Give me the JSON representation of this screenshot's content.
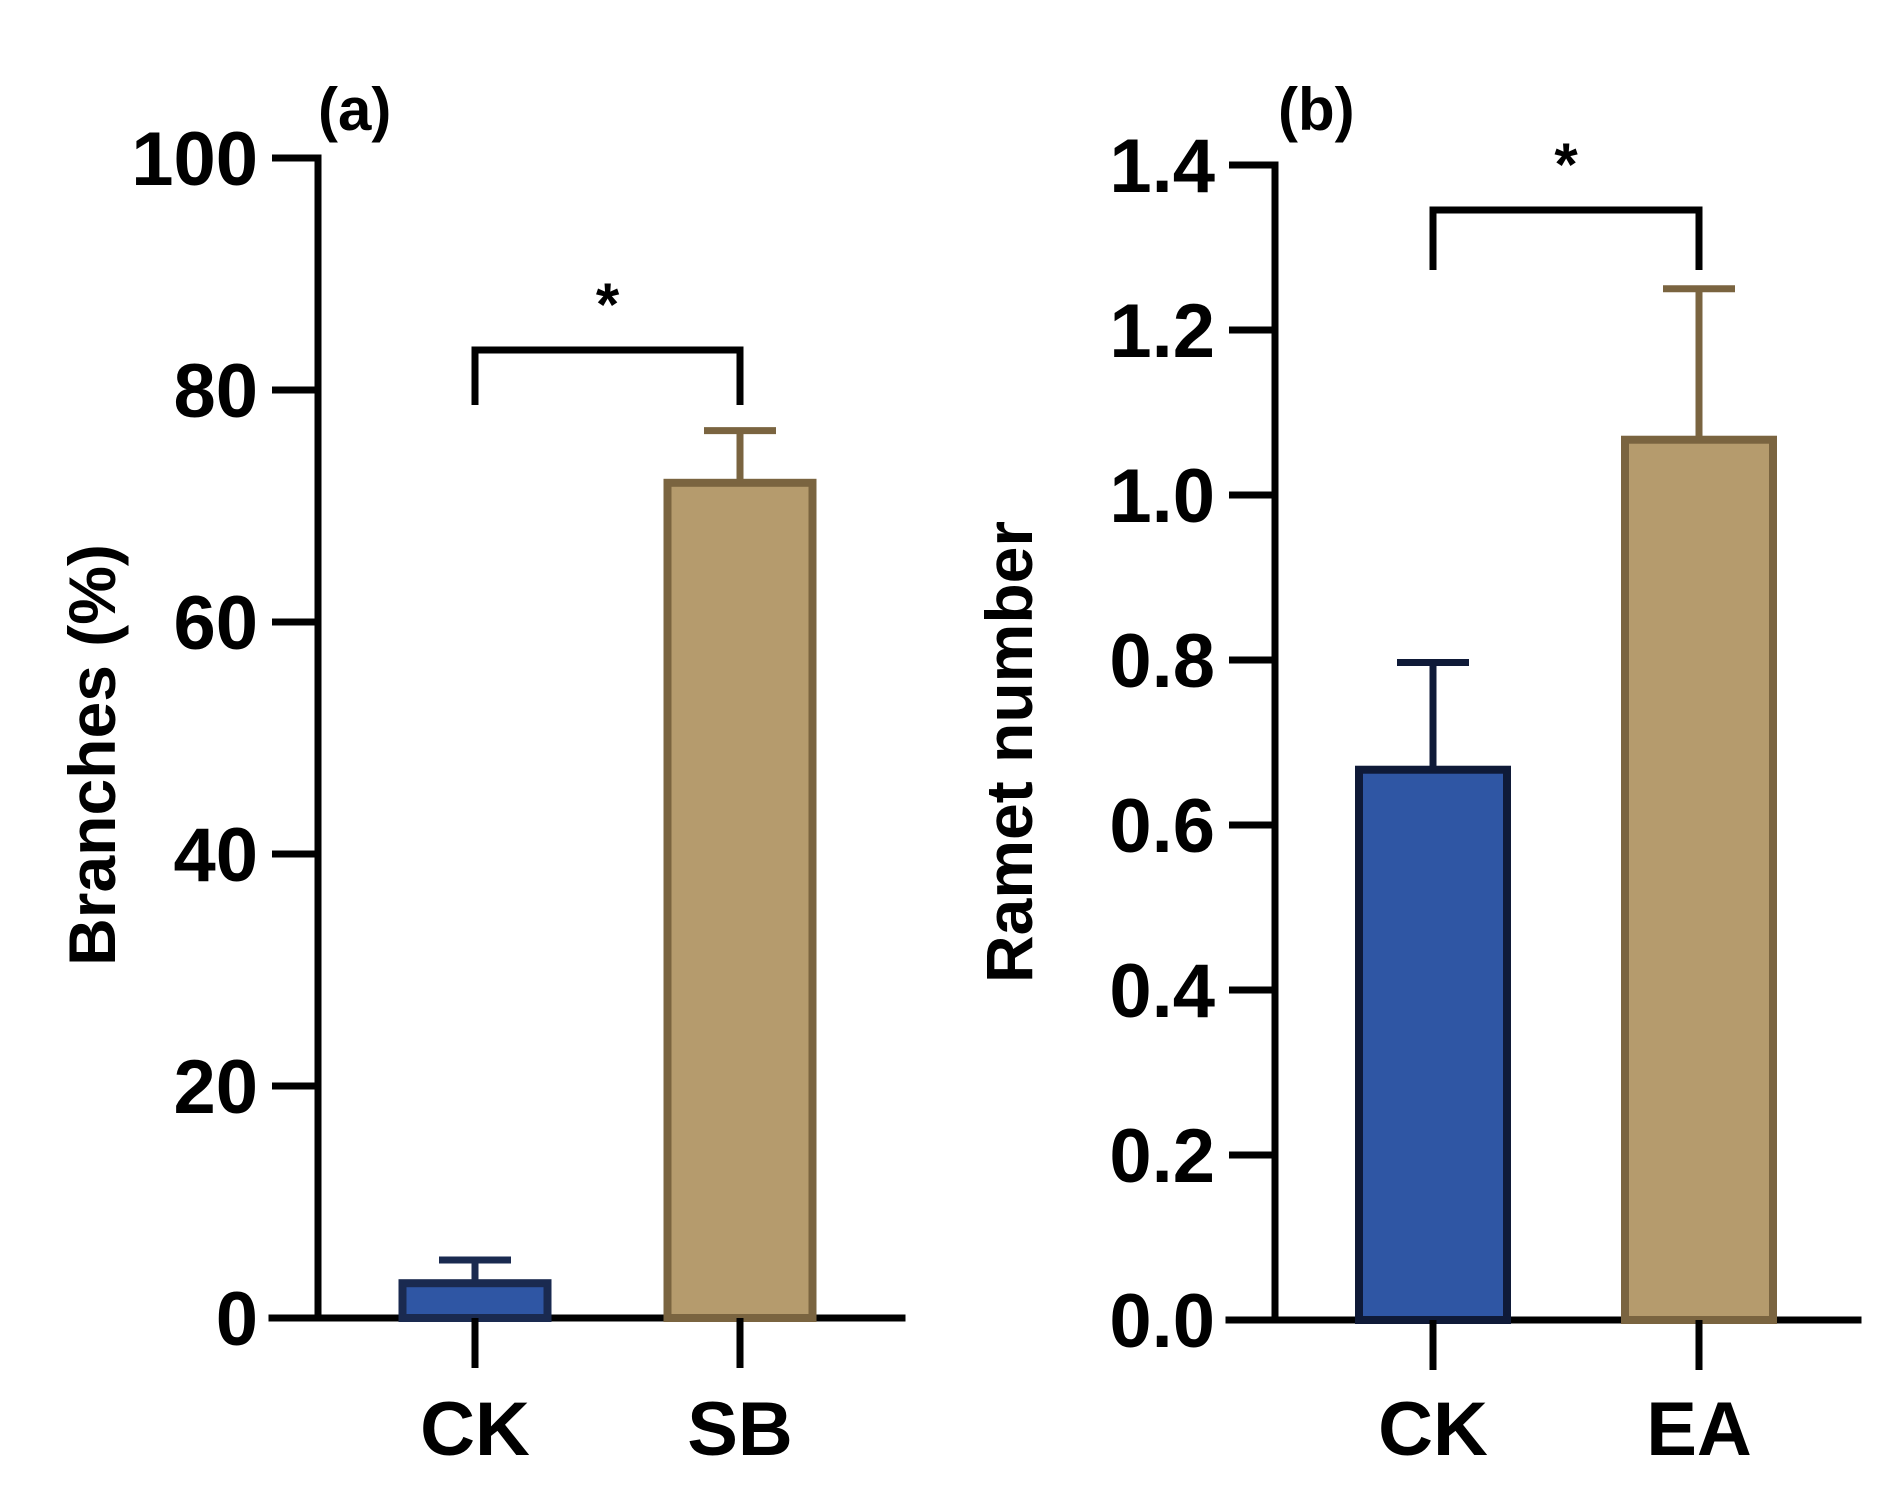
{
  "chart_data": [
    {
      "type": "bar",
      "panel_label": "(a)",
      "categories": [
        "CK",
        "SB"
      ],
      "values": [
        3,
        72
      ],
      "errors": [
        2,
        4.5
      ],
      "ylabel": "Branches (%)",
      "xlabel": "",
      "ylim": [
        0,
        100
      ],
      "yticks": [
        0,
        20,
        40,
        60,
        80,
        100
      ],
      "ytick_labels": [
        "0",
        "20",
        "40",
        "60",
        "80",
        "100"
      ],
      "bar_fills": [
        "#2f56a4",
        "#b59b6d"
      ],
      "bar_edges": [
        "#1a2a50",
        "#7a6440"
      ],
      "significance": {
        "between": [
          0,
          1
        ],
        "label": "*",
        "level": 80
      }
    },
    {
      "type": "bar",
      "panel_label": "(b)",
      "categories": [
        "CK",
        "EA"
      ],
      "values": [
        0.667,
        1.067
      ],
      "errors": [
        0.13,
        0.183
      ],
      "ylabel": "Ramet number",
      "xlabel": "",
      "ylim": [
        0,
        1.4
      ],
      "yticks": [
        0,
        0.2,
        0.4,
        0.6,
        0.8,
        1.0,
        1.2,
        1.4
      ],
      "ytick_labels": [
        "0.0",
        "0.2",
        "0.4",
        "0.6",
        "0.8",
        "1.0",
        "1.2",
        "1.4"
      ],
      "bar_fills": [
        "#2f56a4",
        "#b59b6d"
      ],
      "bar_edges": [
        "#0f1a38",
        "#7a6440"
      ],
      "significance": {
        "between": [
          0,
          1
        ],
        "label": "*",
        "level": 1.35
      }
    }
  ]
}
